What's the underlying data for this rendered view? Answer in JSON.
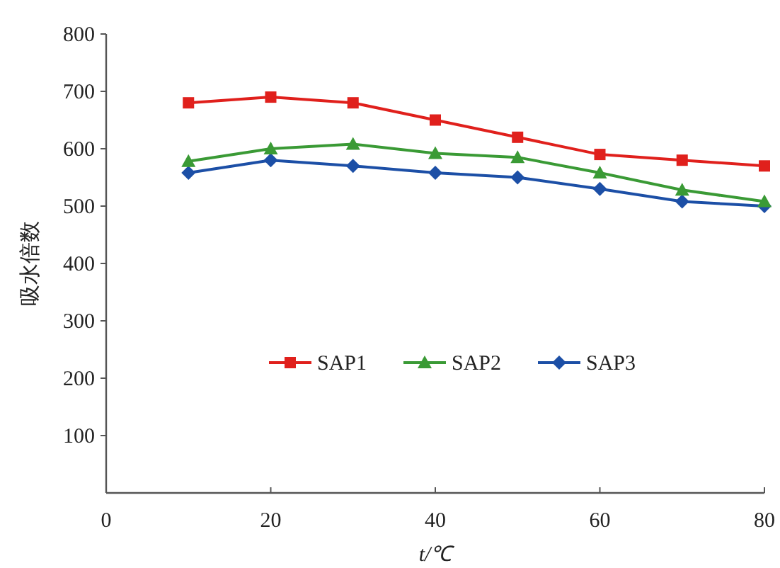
{
  "chart_data": {
    "type": "line",
    "xlabel": "t/℃",
    "ylabel": "吸水倍数",
    "x": [
      10,
      20,
      30,
      40,
      50,
      60,
      70,
      80
    ],
    "series": [
      {
        "name": "SAP1",
        "color": "#e0201c",
        "marker": "square",
        "values": [
          680,
          690,
          680,
          650,
          620,
          590,
          580,
          570
        ]
      },
      {
        "name": "SAP2",
        "color": "#3a9a35",
        "marker": "triangle",
        "values": [
          578,
          600,
          608,
          592,
          585,
          558,
          528,
          508
        ]
      },
      {
        "name": "SAP3",
        "color": "#1c4fa6",
        "marker": "diamond",
        "values": [
          558,
          580,
          570,
          558,
          550,
          530,
          508,
          500
        ]
      }
    ],
    "xlim": [
      0,
      80
    ],
    "xticks": [
      0,
      20,
      40,
      60,
      80
    ],
    "ylim": [
      0,
      800
    ],
    "yticks": [
      100,
      200,
      300,
      400,
      500,
      600,
      700,
      800
    ],
    "grid": false,
    "legend": "center",
    "line_style": "solid"
  }
}
